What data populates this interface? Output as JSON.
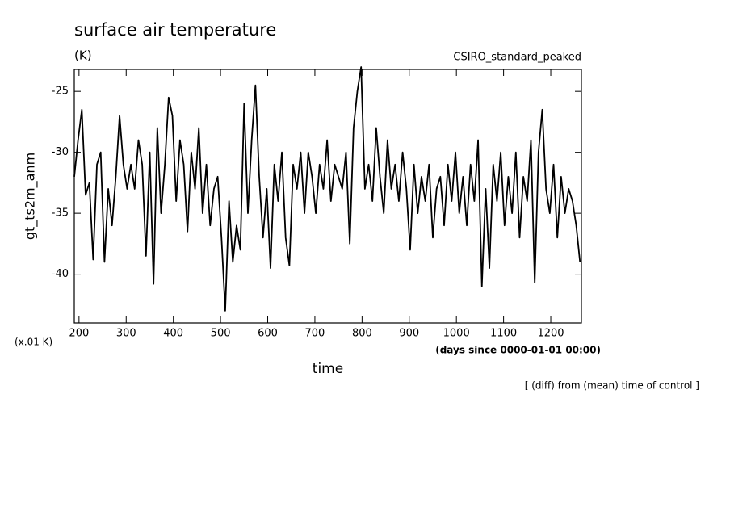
{
  "chart_data": {
    "type": "line",
    "title": "surface air temperature",
    "units": "(K)",
    "subtitle": "CSIRO_standard_peaked",
    "y_label": "gt_ts2m_anm",
    "y_scale_note": "(x.01 K)",
    "x_label": "time",
    "x_units": "(days since 0000-01-01 00:00)",
    "footnote": "[ (diff) from (mean) time of control ]",
    "color": "#000000",
    "xlim": [
      190,
      1265
    ],
    "ylim": [
      -44,
      -23.2
    ],
    "xticks": [
      200,
      300,
      400,
      500,
      600,
      700,
      800,
      900,
      1000,
      1100,
      1200
    ],
    "yticks": [
      -25,
      -30,
      -35,
      -40
    ],
    "x": [
      190,
      198,
      206,
      214,
      222,
      230,
      238,
      246,
      254,
      262,
      270,
      278,
      286,
      294,
      302,
      310,
      318,
      326,
      334,
      342,
      350,
      358,
      366,
      374,
      382,
      390,
      398,
      406,
      414,
      422,
      430,
      438,
      446,
      454,
      462,
      470,
      478,
      486,
      494,
      502,
      510,
      518,
      526,
      534,
      542,
      550,
      558,
      566,
      574,
      582,
      590,
      598,
      606,
      614,
      622,
      630,
      638,
      646,
      654,
      662,
      670,
      678,
      686,
      694,
      702,
      710,
      718,
      726,
      734,
      742,
      750,
      758,
      766,
      774,
      782,
      790,
      798,
      806,
      814,
      822,
      830,
      838,
      846,
      854,
      862,
      870,
      878,
      886,
      894,
      902,
      910,
      918,
      926,
      934,
      942,
      950,
      958,
      966,
      974,
      982,
      990,
      998,
      1006,
      1014,
      1022,
      1030,
      1038,
      1046,
      1054,
      1062,
      1070,
      1078,
      1086,
      1094,
      1102,
      1110,
      1118,
      1126,
      1134,
      1142,
      1150,
      1158,
      1166,
      1174,
      1182,
      1190,
      1198,
      1206,
      1214,
      1222,
      1230,
      1238,
      1246,
      1254,
      1262
    ],
    "values": [
      -32,
      -29,
      -26.5,
      -33.5,
      -32.5,
      -38.8,
      -31,
      -30,
      -39,
      -33,
      -36,
      -32,
      -27,
      -31,
      -33,
      -31,
      -33,
      -29,
      -31,
      -38.5,
      -30,
      -40.8,
      -28,
      -35,
      -31,
      -25.5,
      -27,
      -34,
      -29,
      -31,
      -36.5,
      -30,
      -33,
      -28,
      -35,
      -31,
      -36,
      -33,
      -32,
      -37,
      -43,
      -34,
      -39,
      -36,
      -38,
      -26,
      -35,
      -29,
      -24.5,
      -32,
      -37,
      -33,
      -39.5,
      -31,
      -34,
      -30,
      -37,
      -39.3,
      -31,
      -33,
      -30,
      -35,
      -30,
      -32,
      -35,
      -31,
      -33,
      -29,
      -34,
      -31,
      -32,
      -33,
      -30,
      -37.5,
      -28,
      -25,
      -23,
      -33,
      -31,
      -34,
      -28,
      -32,
      -35,
      -29,
      -33,
      -31,
      -34,
      -30,
      -33,
      -38,
      -31,
      -35,
      -32,
      -34,
      -31,
      -37,
      -33,
      -32,
      -36,
      -31,
      -34,
      -30,
      -35,
      -32,
      -36,
      -31,
      -34,
      -29,
      -41,
      -33,
      -39.5,
      -31,
      -34,
      -30,
      -36,
      -32,
      -35,
      -30,
      -37,
      -32,
      -34,
      -29,
      -40.7,
      -30,
      -26.5,
      -33,
      -35,
      -31,
      -37,
      -32,
      -35,
      -33,
      -34,
      -36,
      -39
    ]
  }
}
